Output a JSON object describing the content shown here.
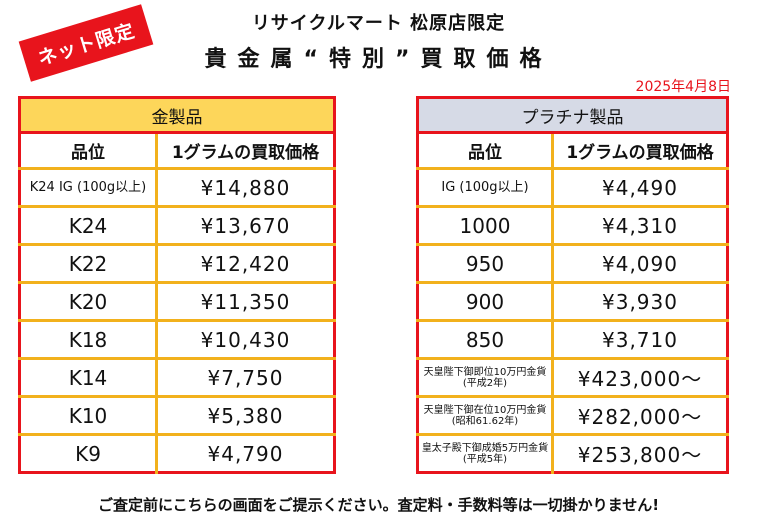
{
  "badge": "ネット限定",
  "store_line": "リサイクルマート 松原店限定",
  "title": "貴金属“特別”買取価格",
  "date": "2025年4月8日",
  "gold": {
    "caption": "金製品",
    "headers": [
      "品位",
      "1グラムの買取価格"
    ],
    "rows": [
      {
        "grade": "K24 IG (100g以上)",
        "price": "¥14,880"
      },
      {
        "grade": "K24",
        "price": "¥13,670"
      },
      {
        "grade": "K22",
        "price": "¥12,420"
      },
      {
        "grade": "K20",
        "price": "¥11,350"
      },
      {
        "grade": "K18",
        "price": "¥10,430"
      },
      {
        "grade": "K14",
        "price": "¥7,750"
      },
      {
        "grade": "K10",
        "price": "¥5,380"
      },
      {
        "grade": "K9",
        "price": "¥4,790"
      }
    ]
  },
  "platinum": {
    "caption": "プラチナ製品",
    "headers": [
      "品位",
      "1グラムの買取価格"
    ],
    "rows": [
      {
        "grade": "IG (100g以上)",
        "price": "¥4,490"
      },
      {
        "grade": "1000",
        "price": "¥4,310"
      },
      {
        "grade": "950",
        "price": "¥4,090"
      },
      {
        "grade": "900",
        "price": "¥3,930"
      },
      {
        "grade": "850",
        "price": "¥3,710"
      },
      {
        "grade": "天皇陛下御即位10万円金貨(平成2年)",
        "price": "¥423,000〜"
      },
      {
        "grade": "天皇陛下御在位10万円金貨(昭和61.62年)",
        "price": "¥282,000〜"
      },
      {
        "grade": "皇太子殿下御成婚5万円金貨(平成5年)",
        "price": "¥253,800〜"
      }
    ]
  },
  "notice": "ご査定前にこちらの画面をご提示ください。査定料・手数料等は一切掛かりません!",
  "colors": {
    "accent_red": "#e8141c",
    "gold_header": "#fdd65a",
    "platinum_header": "#d6dae6",
    "row_line": "#f2b11c"
  }
}
